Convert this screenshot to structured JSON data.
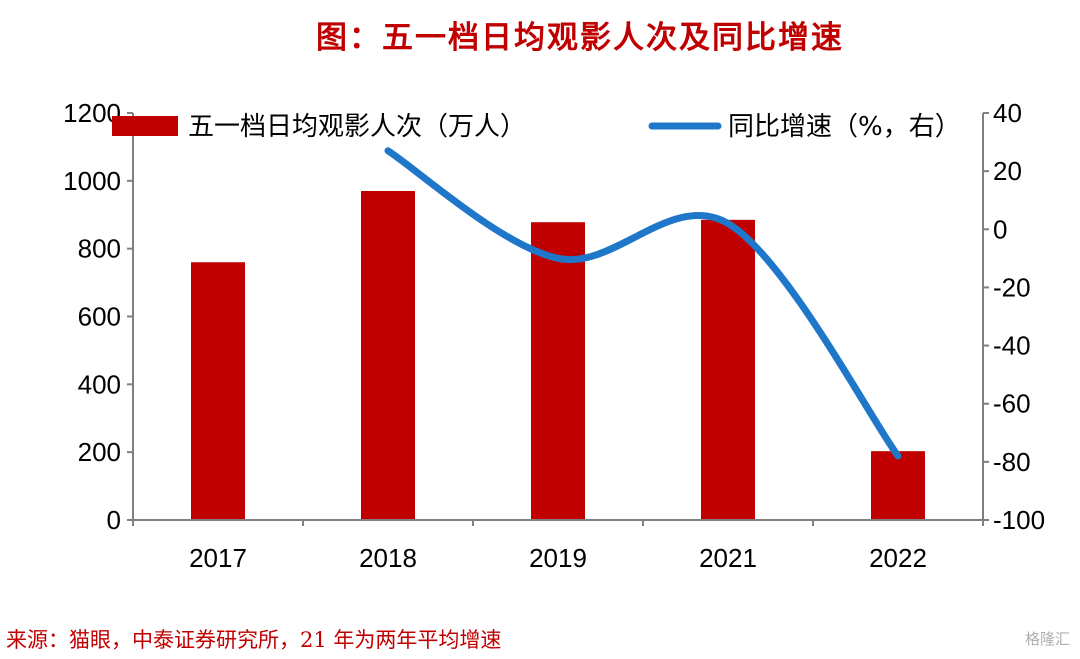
{
  "title": "图：五一档日均观影人次及同比增速",
  "source": "来源：猫眼，中泰证券研究所，21 年为两年平均增速",
  "watermark": "格隆汇",
  "colors": {
    "bar": "#c00000",
    "line": "#1f77c9",
    "title": "#c00000",
    "axis": "#808080"
  },
  "chart_data": {
    "type": "bar",
    "title": "图：五一档日均观影人次及同比增速",
    "categories": [
      "2017",
      "2018",
      "2019",
      "2021",
      "2022"
    ],
    "series": [
      {
        "name": "五一档日均观影人次（万人）",
        "type": "bar",
        "axis": "left",
        "values": [
          760,
          970,
          878,
          885,
          203
        ]
      },
      {
        "name": "同比增速（%，右）",
        "type": "line",
        "axis": "right",
        "values": [
          null,
          27,
          -10,
          2,
          -78
        ]
      }
    ],
    "y_left": {
      "range": [
        0,
        1200
      ],
      "ticks": [
        "0",
        "200",
        "400",
        "600",
        "800",
        "1000",
        "1200"
      ]
    },
    "y_right": {
      "range": [
        -100,
        40
      ],
      "ticks": [
        "-100",
        "-80",
        "-60",
        "-40",
        "-20",
        "0",
        "20",
        "40"
      ]
    },
    "legend": "top",
    "grid": false
  }
}
